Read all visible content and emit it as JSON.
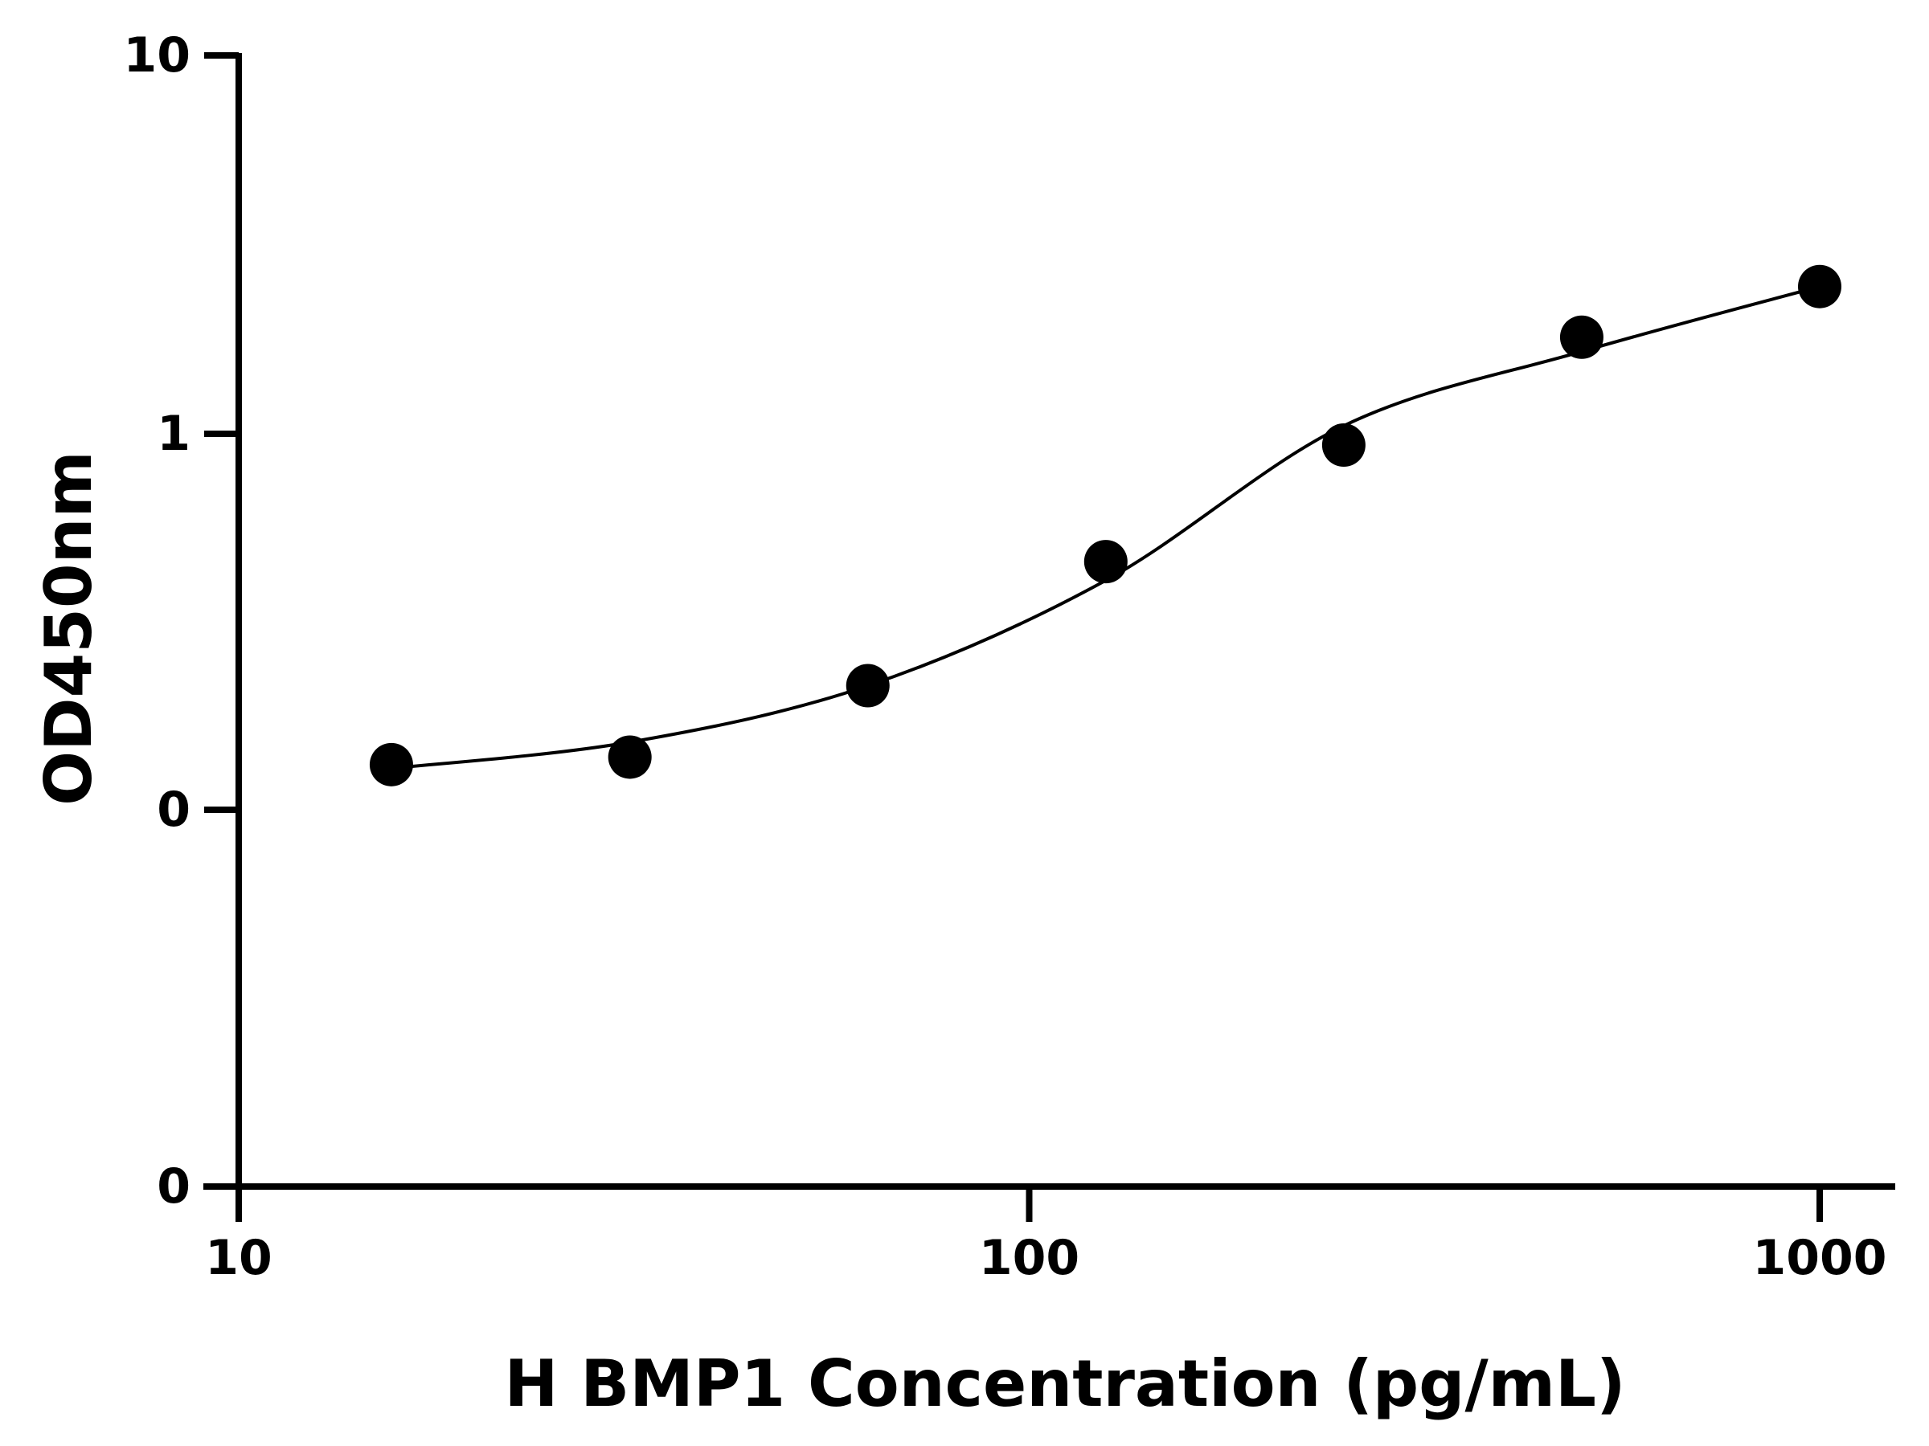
{
  "chart_data": {
    "type": "scatter",
    "title": "",
    "xlabel": "H BMP1 Concentration (pg/mL)",
    "ylabel": "OD450nm",
    "x_scale": "log",
    "xlim": [
      10,
      1000
    ],
    "x_ticks": [
      {
        "value": 10,
        "label": "10"
      },
      {
        "value": 100,
        "label": "100"
      },
      {
        "value": 1000,
        "label": "1000"
      }
    ],
    "y_ticks": [
      {
        "label": "0"
      },
      {
        "label": "0"
      },
      {
        "label": "1"
      },
      {
        "label": "10"
      }
    ],
    "series": [
      {
        "x": [
          15.6,
          31.25,
          62.5,
          125,
          250,
          500,
          1000
        ],
        "y": [
          0.12,
          0.14,
          0.33,
          0.66,
          0.97,
          1.8,
          2.45
        ],
        "marker": "circle",
        "color": "#000000"
      }
    ],
    "fit_curve": {
      "x": [
        15.6,
        31.25,
        62.5,
        125,
        250,
        500,
        1000
      ],
      "y": [
        0.11,
        0.18,
        0.33,
        0.61,
        1.05,
        1.65,
        2.45
      ],
      "color": "#000000"
    },
    "grid": false,
    "legend": "none"
  }
}
